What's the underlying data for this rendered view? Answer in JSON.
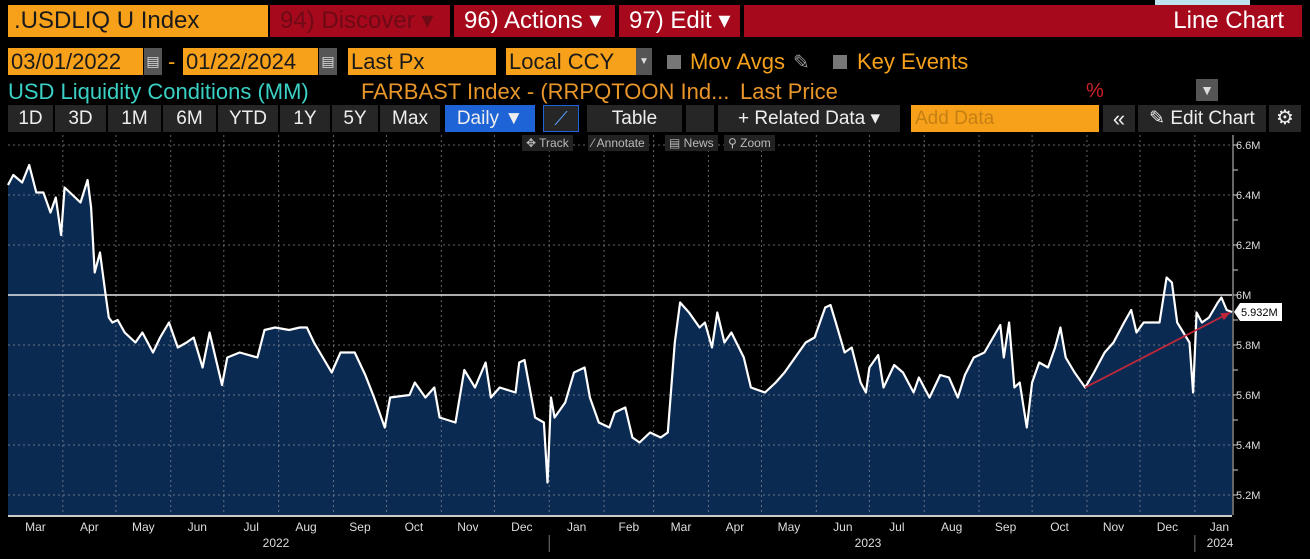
{
  "header": {
    "ticker": ".USDLIQ U Index",
    "discover": "94) Discover ▾",
    "actions": "96) Actions ▾",
    "edit": "97) Edit ▾",
    "view": "Line Chart"
  },
  "controls": {
    "start_date": "03/01/2022",
    "end_date": "01/22/2024",
    "dash": "-",
    "field": "Last Px",
    "currency": "Local CCY",
    "mov_avgs": "Mov Avgs",
    "key_events": "Key Events",
    "mov_avgs_checked": false,
    "key_events_checked": false
  },
  "legend": {
    "series_title": "USD Liquidity Conditions (MM)",
    "formula": "FARBAST Index - (RRPQTOON Ind...",
    "price_label": "Last Price",
    "percent": "%"
  },
  "toolbar": {
    "ranges": [
      "1D",
      "3D",
      "1M",
      "6M",
      "YTD",
      "1Y",
      "5Y",
      "Max"
    ],
    "frequency": "Daily ▼",
    "table": "Table",
    "related": "+ Related Data ▾",
    "add_data_placeholder": "Add Data",
    "collapse": "«",
    "edit_chart": "✎ Edit Chart",
    "settings": "⚙"
  },
  "chart_tools": {
    "track": "✥ Track",
    "annotate": "⁄ Annotate",
    "news": "▤ News",
    "zoom": "⚲ Zoom"
  },
  "colors": {
    "accent_orange": "#f7a11a",
    "header_red": "#a5091b",
    "series_cyan": "#3ad1c4",
    "fill": "#0b2a52",
    "line": "#ffffff",
    "trend_arrow": "#c0283a",
    "active_blue": "#1f64d6"
  },
  "chart_data": {
    "type": "area",
    "ylim": [
      5.12,
      6.64
    ],
    "y_ticks": [
      {
        "v": 6.6,
        "label": "6.6M"
      },
      {
        "v": 6.4,
        "label": "6.4M"
      },
      {
        "v": 6.2,
        "label": "6.2M"
      },
      {
        "v": 6.0,
        "label": "6M"
      },
      {
        "v": 5.8,
        "label": "5.8M"
      },
      {
        "v": 5.6,
        "label": "5.6M"
      },
      {
        "v": 5.4,
        "label": "5.4M"
      },
      {
        "v": 5.2,
        "label": "5.2M"
      }
    ],
    "xlim": [
      "2022-03-01",
      "2024-01-22"
    ],
    "x_ticks": [
      {
        "d": "2022-03",
        "label": "Mar"
      },
      {
        "d": "2022-04",
        "label": "Apr"
      },
      {
        "d": "2022-05",
        "label": "May"
      },
      {
        "d": "2022-06",
        "label": "Jun"
      },
      {
        "d": "2022-07",
        "label": "Jul"
      },
      {
        "d": "2022-08",
        "label": "Aug"
      },
      {
        "d": "2022-09",
        "label": "Sep"
      },
      {
        "d": "2022-10",
        "label": "Oct"
      },
      {
        "d": "2022-11",
        "label": "Nov"
      },
      {
        "d": "2022-12",
        "label": "Dec"
      },
      {
        "d": "2023-01",
        "label": "Jan"
      },
      {
        "d": "2023-02",
        "label": "Feb"
      },
      {
        "d": "2023-03",
        "label": "Mar"
      },
      {
        "d": "2023-04",
        "label": "Apr"
      },
      {
        "d": "2023-05",
        "label": "May"
      },
      {
        "d": "2023-06",
        "label": "Jun"
      },
      {
        "d": "2023-07",
        "label": "Jul"
      },
      {
        "d": "2023-08",
        "label": "Aug"
      },
      {
        "d": "2023-09",
        "label": "Sep"
      },
      {
        "d": "2023-10",
        "label": "Oct"
      },
      {
        "d": "2023-11",
        "label": "Nov"
      },
      {
        "d": "2023-12",
        "label": "Dec"
      },
      {
        "d": "2024-01",
        "label": "Jan"
      }
    ],
    "year_labels": [
      {
        "y": "2022",
        "label": "2022"
      },
      {
        "y": "2023",
        "label": "2023"
      },
      {
        "y": "2024",
        "label": "2024"
      }
    ],
    "reference_line": 6.0,
    "last_value_label": "5.932M",
    "grid": true,
    "trend_arrow": {
      "from": [
        "2023-10-31",
        5.63
      ],
      "to": [
        "2024-01-21",
        5.93
      ]
    },
    "series": [
      {
        "dates": [
          "2022-03-01",
          "2022-03-04",
          "2022-03-09",
          "2022-03-13",
          "2022-03-17",
          "2022-03-21",
          "2022-03-25",
          "2022-03-28",
          "2022-03-31",
          "2022-04-02",
          "2022-04-11",
          "2022-04-15",
          "2022-04-17",
          "2022-04-19",
          "2022-04-22",
          "2022-04-25",
          "2022-04-27",
          "2022-04-29",
          "2022-05-02",
          "2022-05-06",
          "2022-05-12",
          "2022-05-16",
          "2022-05-22",
          "2022-05-26",
          "2022-05-31",
          "2022-06-05",
          "2022-06-10",
          "2022-06-14",
          "2022-06-19",
          "2022-06-23",
          "2022-06-30",
          "2022-07-03",
          "2022-07-10",
          "2022-07-20",
          "2022-07-24",
          "2022-07-30",
          "2022-08-07",
          "2022-08-13",
          "2022-08-17",
          "2022-08-21",
          "2022-08-31",
          "2022-09-05",
          "2022-09-13",
          "2022-09-19",
          "2022-09-24",
          "2022-09-30",
          "2022-10-03",
          "2022-10-14",
          "2022-10-17",
          "2022-10-23",
          "2022-10-28",
          "2022-10-31",
          "2022-11-09",
          "2022-11-14",
          "2022-11-20",
          "2022-11-26",
          "2022-11-29",
          "2022-12-04",
          "2022-12-13",
          "2022-12-15",
          "2022-12-18",
          "2022-12-24",
          "2022-12-29",
          "2022-12-31",
          "2023-01-02",
          "2023-01-04",
          "2023-01-10",
          "2023-01-15",
          "2023-01-21",
          "2023-01-24",
          "2023-01-29",
          "2023-02-04",
          "2023-02-07",
          "2023-02-13",
          "2023-02-17",
          "2023-02-21",
          "2023-02-27",
          "2023-03-05",
          "2023-03-09",
          "2023-03-13",
          "2023-03-16",
          "2023-03-21",
          "2023-03-27",
          "2023-03-30",
          "2023-04-03",
          "2023-04-06",
          "2023-04-10",
          "2023-04-14",
          "2023-04-21",
          "2023-04-25",
          "2023-05-03",
          "2023-05-09",
          "2023-05-14",
          "2023-05-20",
          "2023-05-26",
          "2023-05-31",
          "2023-06-06",
          "2023-06-09",
          "2023-06-12",
          "2023-06-17",
          "2023-06-21",
          "2023-06-26",
          "2023-06-29",
          "2023-07-01",
          "2023-07-06",
          "2023-07-09",
          "2023-07-15",
          "2023-07-20",
          "2023-07-26",
          "2023-07-29",
          "2023-08-04",
          "2023-08-10",
          "2023-08-15",
          "2023-08-20",
          "2023-08-24",
          "2023-08-29",
          "2023-09-04",
          "2023-09-13",
          "2023-09-15",
          "2023-09-18",
          "2023-09-21",
          "2023-09-24",
          "2023-09-28",
          "2023-10-01",
          "2023-10-05",
          "2023-10-10",
          "2023-10-14",
          "2023-10-17",
          "2023-10-20",
          "2023-10-25",
          "2023-10-31",
          "2023-11-05",
          "2023-11-11",
          "2023-11-16",
          "2023-11-22",
          "2023-11-26",
          "2023-11-29",
          "2023-12-03",
          "2023-12-12",
          "2023-12-16",
          "2023-12-19",
          "2023-12-22",
          "2023-12-29",
          "2023-12-31",
          "2024-01-02",
          "2024-01-05",
          "2024-01-09",
          "2024-01-14",
          "2024-01-16",
          "2024-01-19",
          "2024-01-22"
        ],
        "values": [
          6.44,
          6.48,
          6.45,
          6.52,
          6.41,
          6.41,
          6.33,
          6.39,
          6.24,
          6.43,
          6.37,
          6.46,
          6.35,
          6.09,
          6.17,
          6.01,
          5.91,
          5.89,
          5.9,
          5.85,
          5.81,
          5.85,
          5.77,
          5.83,
          5.89,
          5.79,
          5.81,
          5.83,
          5.71,
          5.85,
          5.64,
          5.75,
          5.77,
          5.75,
          5.86,
          5.87,
          5.86,
          5.87,
          5.87,
          5.81,
          5.69,
          5.77,
          5.77,
          5.68,
          5.59,
          5.47,
          5.59,
          5.6,
          5.65,
          5.59,
          5.63,
          5.51,
          5.49,
          5.7,
          5.63,
          5.73,
          5.59,
          5.63,
          5.61,
          5.73,
          5.74,
          5.51,
          5.49,
          5.25,
          5.59,
          5.51,
          5.57,
          5.69,
          5.71,
          5.59,
          5.49,
          5.47,
          5.53,
          5.55,
          5.43,
          5.41,
          5.45,
          5.43,
          5.45,
          5.81,
          5.97,
          5.93,
          5.87,
          5.89,
          5.79,
          5.93,
          5.81,
          5.85,
          5.75,
          5.63,
          5.61,
          5.65,
          5.69,
          5.75,
          5.81,
          5.83,
          5.95,
          5.96,
          5.89,
          5.77,
          5.79,
          5.65,
          5.61,
          5.71,
          5.76,
          5.63,
          5.72,
          5.69,
          5.61,
          5.67,
          5.59,
          5.68,
          5.67,
          5.59,
          5.68,
          5.75,
          5.77,
          5.88,
          5.75,
          5.89,
          5.63,
          5.65,
          5.47,
          5.65,
          5.73,
          5.71,
          5.79,
          5.87,
          5.75,
          5.69,
          5.63,
          5.69,
          5.77,
          5.81,
          5.89,
          5.94,
          5.85,
          5.89,
          5.89,
          6.07,
          6.05,
          5.89,
          5.81,
          5.61,
          5.93,
          5.89,
          5.91,
          5.97,
          5.99,
          5.94,
          5.932
        ]
      }
    ]
  }
}
